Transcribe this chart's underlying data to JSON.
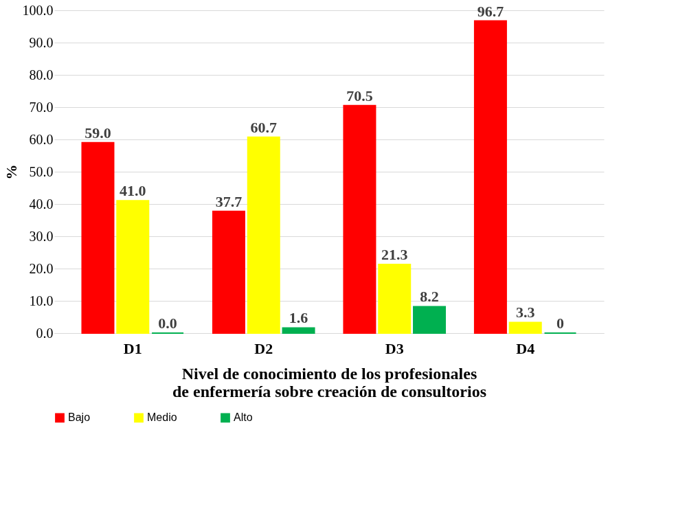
{
  "chart_data": {
    "type": "bar",
    "ylabel": "%",
    "xlabel": "Nivel  de conocimiento de los profesionales de enfermería sobre creación de consultorios",
    "categories": [
      "D1",
      "D2",
      "D3",
      "D4"
    ],
    "series": [
      {
        "name": "Bajo",
        "color": "#ff0000",
        "values": [
          59.0,
          37.7,
          70.5,
          96.7
        ],
        "value_labels": [
          "59.0",
          "37.7",
          "70.5",
          "96.7"
        ]
      },
      {
        "name": "Medio",
        "color": "#ffff00",
        "values": [
          41.0,
          60.7,
          21.3,
          3.3
        ],
        "value_labels": [
          "41.0",
          "60.7",
          "21.3",
          "3.3"
        ]
      },
      {
        "name": "Alto",
        "color": "#00b050",
        "values": [
          0.0,
          1.6,
          8.2,
          0
        ],
        "value_labels": [
          "0.0",
          "1.6",
          "8.2",
          "0"
        ]
      }
    ],
    "ylim": [
      0,
      100
    ],
    "yticks": [
      {
        "value": 0,
        "label": "0.0"
      },
      {
        "value": 10,
        "label": "10.0"
      },
      {
        "value": 20,
        "label": "20.0"
      },
      {
        "value": 30,
        "label": "30.0"
      },
      {
        "value": 40,
        "label": "40.0"
      },
      {
        "value": 50,
        "label": "50.0"
      },
      {
        "value": 60,
        "label": "60.0"
      },
      {
        "value": 70,
        "label": "70.0"
      },
      {
        "value": 80,
        "label": "80.0"
      },
      {
        "value": 90,
        "label": "90.0"
      },
      {
        "value": 100,
        "label": "100.0"
      }
    ],
    "grid": "y",
    "legend": "bottom"
  }
}
